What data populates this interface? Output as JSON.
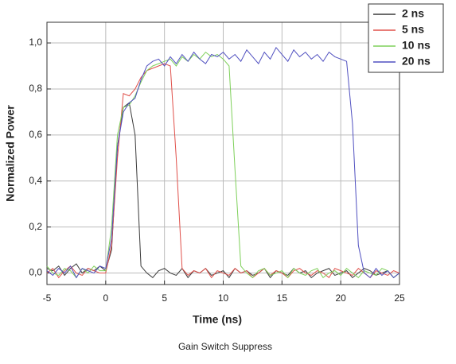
{
  "chart_data": {
    "type": "line",
    "caption": "Gain Switch Suppress",
    "xlabel": "Time (ns)",
    "ylabel": "Normalized Power",
    "xlim": [
      -5,
      25
    ],
    "ylim": [
      -0.05,
      1.09
    ],
    "xticks": [
      -5,
      0,
      5,
      10,
      15,
      20,
      25
    ],
    "yticks": [
      {
        "value": 0,
        "label": "0,0"
      },
      {
        "value": 0.2,
        "label": "0,2"
      },
      {
        "value": 0.4,
        "label": "0,4"
      },
      {
        "value": 0.6,
        "label": "0,6"
      },
      {
        "value": 0.8,
        "label": "0,8"
      },
      {
        "value": 1.0,
        "label": "1,0"
      }
    ],
    "grid": true,
    "legend": "upper right",
    "x": [
      -5,
      -4.5,
      -4,
      -3.5,
      -3,
      -2.5,
      -2,
      -1.5,
      -1,
      -0.5,
      0,
      0.5,
      1,
      1.5,
      2,
      2.5,
      3,
      3.5,
      4,
      4.5,
      5,
      5.5,
      6,
      6.5,
      7,
      7.5,
      8,
      8.5,
      9,
      9.5,
      10,
      10.5,
      11,
      11.5,
      12,
      12.5,
      13,
      13.5,
      14,
      14.5,
      15,
      15.5,
      16,
      16.5,
      17,
      17.5,
      18,
      18.5,
      19,
      19.5,
      20,
      20.5,
      21,
      21.5,
      22,
      22.5,
      23,
      23.5,
      24,
      24.5,
      25
    ],
    "series": [
      {
        "name": "2 ns",
        "color": "#3a3a3a",
        "values": [
          0.02,
          0.01,
          0.03,
          -0.01,
          0.02,
          0.04,
          0.0,
          0.02,
          0.01,
          0.03,
          0.01,
          0.1,
          0.55,
          0.72,
          0.74,
          0.6,
          0.03,
          0.0,
          -0.02,
          0.01,
          0.02,
          0.0,
          -0.01,
          0.02,
          -0.02,
          0.01,
          0.0,
          0.02,
          -0.01,
          0.0,
          0.01,
          -0.02,
          0.02,
          0.0,
          0.01,
          -0.01,
          0.0,
          0.02,
          -0.02,
          0.01,
          0.0,
          -0.01,
          0.02,
          0.0,
          0.01,
          -0.02,
          0.0,
          0.01,
          0.02,
          -0.01,
          0.0,
          0.01,
          -0.02,
          0.0,
          0.02,
          0.01,
          -0.01,
          0.0,
          0.01,
          -0.02,
          0.0
        ]
      },
      {
        "name": "5 ns",
        "color": "#e0504a",
        "values": [
          0.0,
          0.02,
          -0.02,
          0.01,
          0.03,
          0.0,
          -0.01,
          0.02,
          0.01,
          0.0,
          0.0,
          0.12,
          0.5,
          0.78,
          0.77,
          0.8,
          0.85,
          0.88,
          0.89,
          0.9,
          0.91,
          0.9,
          0.5,
          0.02,
          -0.01,
          0.01,
          0.0,
          0.02,
          -0.02,
          0.01,
          0.0,
          -0.01,
          0.02,
          0.0,
          0.01,
          -0.02,
          0.0,
          0.02,
          -0.01,
          0.01,
          0.0,
          -0.02,
          0.01,
          0.02,
          0.0,
          -0.01,
          0.01,
          0.0,
          -0.02,
          0.02,
          0.01,
          0.0,
          -0.01,
          0.02,
          0.0,
          -0.02,
          0.01,
          0.0,
          -0.01,
          0.01,
          0.0
        ]
      },
      {
        "name": "10 ns",
        "color": "#7ed05a",
        "values": [
          0.03,
          0.0,
          -0.01,
          0.02,
          0.01,
          -0.02,
          0.02,
          0.0,
          0.03,
          0.01,
          0.01,
          0.2,
          0.6,
          0.72,
          0.73,
          0.77,
          0.83,
          0.88,
          0.9,
          0.91,
          0.92,
          0.93,
          0.9,
          0.94,
          0.92,
          0.95,
          0.93,
          0.96,
          0.94,
          0.95,
          0.93,
          0.9,
          0.45,
          0.03,
          0.0,
          -0.02,
          0.01,
          0.02,
          -0.01,
          0.0,
          0.01,
          -0.02,
          0.02,
          0.0,
          -0.01,
          0.01,
          0.02,
          -0.02,
          0.0,
          0.01,
          -0.01,
          0.02,
          0.0,
          -0.02,
          0.01,
          0.0,
          -0.01,
          0.02,
          0.01,
          -0.02,
          0.0
        ]
      },
      {
        "name": "20 ns",
        "color": "#5050c0",
        "values": [
          0.01,
          -0.01,
          0.02,
          0.0,
          0.03,
          -0.02,
          0.02,
          0.01,
          0.0,
          0.03,
          0.02,
          0.15,
          0.55,
          0.7,
          0.74,
          0.76,
          0.84,
          0.9,
          0.92,
          0.93,
          0.9,
          0.94,
          0.91,
          0.95,
          0.92,
          0.96,
          0.93,
          0.91,
          0.95,
          0.94,
          0.96,
          0.93,
          0.95,
          0.92,
          0.97,
          0.94,
          0.91,
          0.96,
          0.93,
          0.98,
          0.95,
          0.92,
          0.97,
          0.94,
          0.96,
          0.93,
          0.95,
          0.92,
          0.96,
          0.94,
          0.93,
          0.92,
          0.65,
          0.12,
          0.0,
          -0.02,
          0.02,
          -0.01,
          0.01,
          -0.02,
          0.0
        ]
      }
    ]
  }
}
